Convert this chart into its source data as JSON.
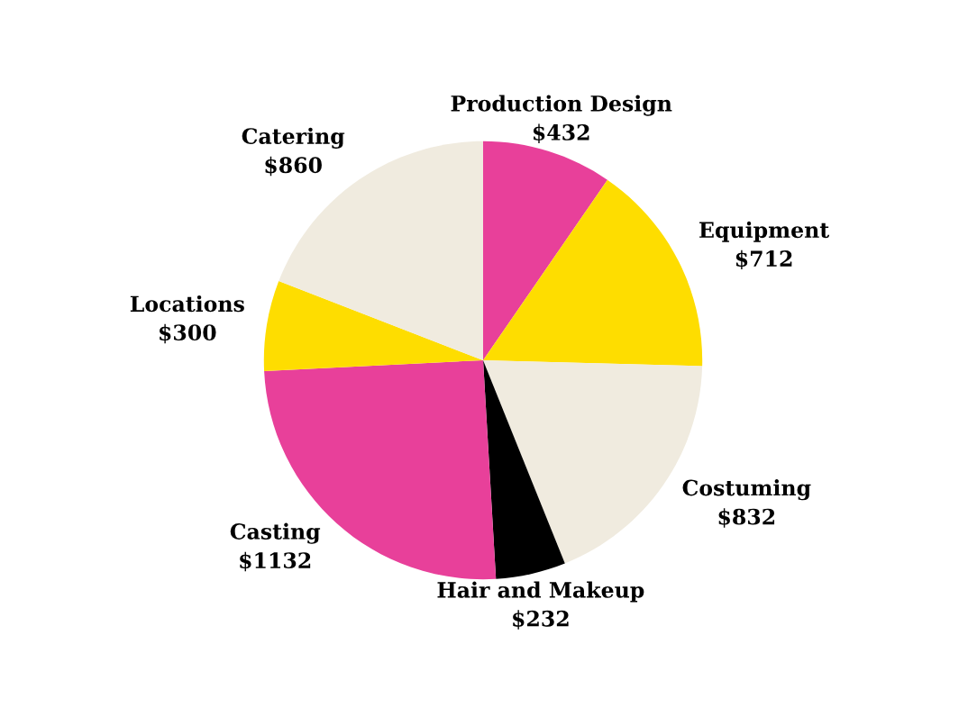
{
  "chart_data": {
    "type": "pie",
    "categories": [
      "Production Design",
      "Equipment",
      "Costuming",
      "Hair and Makeup",
      "Casting",
      "Locations",
      "Catering"
    ],
    "values": [
      432,
      712,
      832,
      232,
      1132,
      300,
      860
    ],
    "value_labels": [
      "$432",
      "$712",
      "$832",
      "$232",
      "$1132",
      "$300",
      "$860"
    ],
    "colors": [
      "#e8409a",
      "#fedd00",
      "#f0ebdf",
      "#000000",
      "#e8409a",
      "#fedd00",
      "#f0ebdf"
    ]
  }
}
